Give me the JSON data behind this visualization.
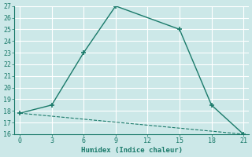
{
  "line1_x": [
    0,
    3,
    6,
    9,
    15,
    18,
    21
  ],
  "line1_y": [
    17.8,
    18.5,
    23.0,
    27.0,
    25.0,
    18.5,
    16.0
  ],
  "line2_x": [
    0,
    21
  ],
  "line2_y": [
    17.8,
    16.0
  ],
  "line_color": "#1a7a6a",
  "bg_color": "#cce8e8",
  "grid_color": "#ffffff",
  "xlabel": "Humidex (Indice chaleur)",
  "xlim": [
    -0.5,
    21.5
  ],
  "ylim": [
    16,
    27
  ],
  "xticks": [
    0,
    3,
    6,
    9,
    12,
    15,
    18,
    21
  ],
  "yticks": [
    16,
    17,
    18,
    19,
    20,
    21,
    22,
    23,
    24,
    25,
    26,
    27
  ]
}
